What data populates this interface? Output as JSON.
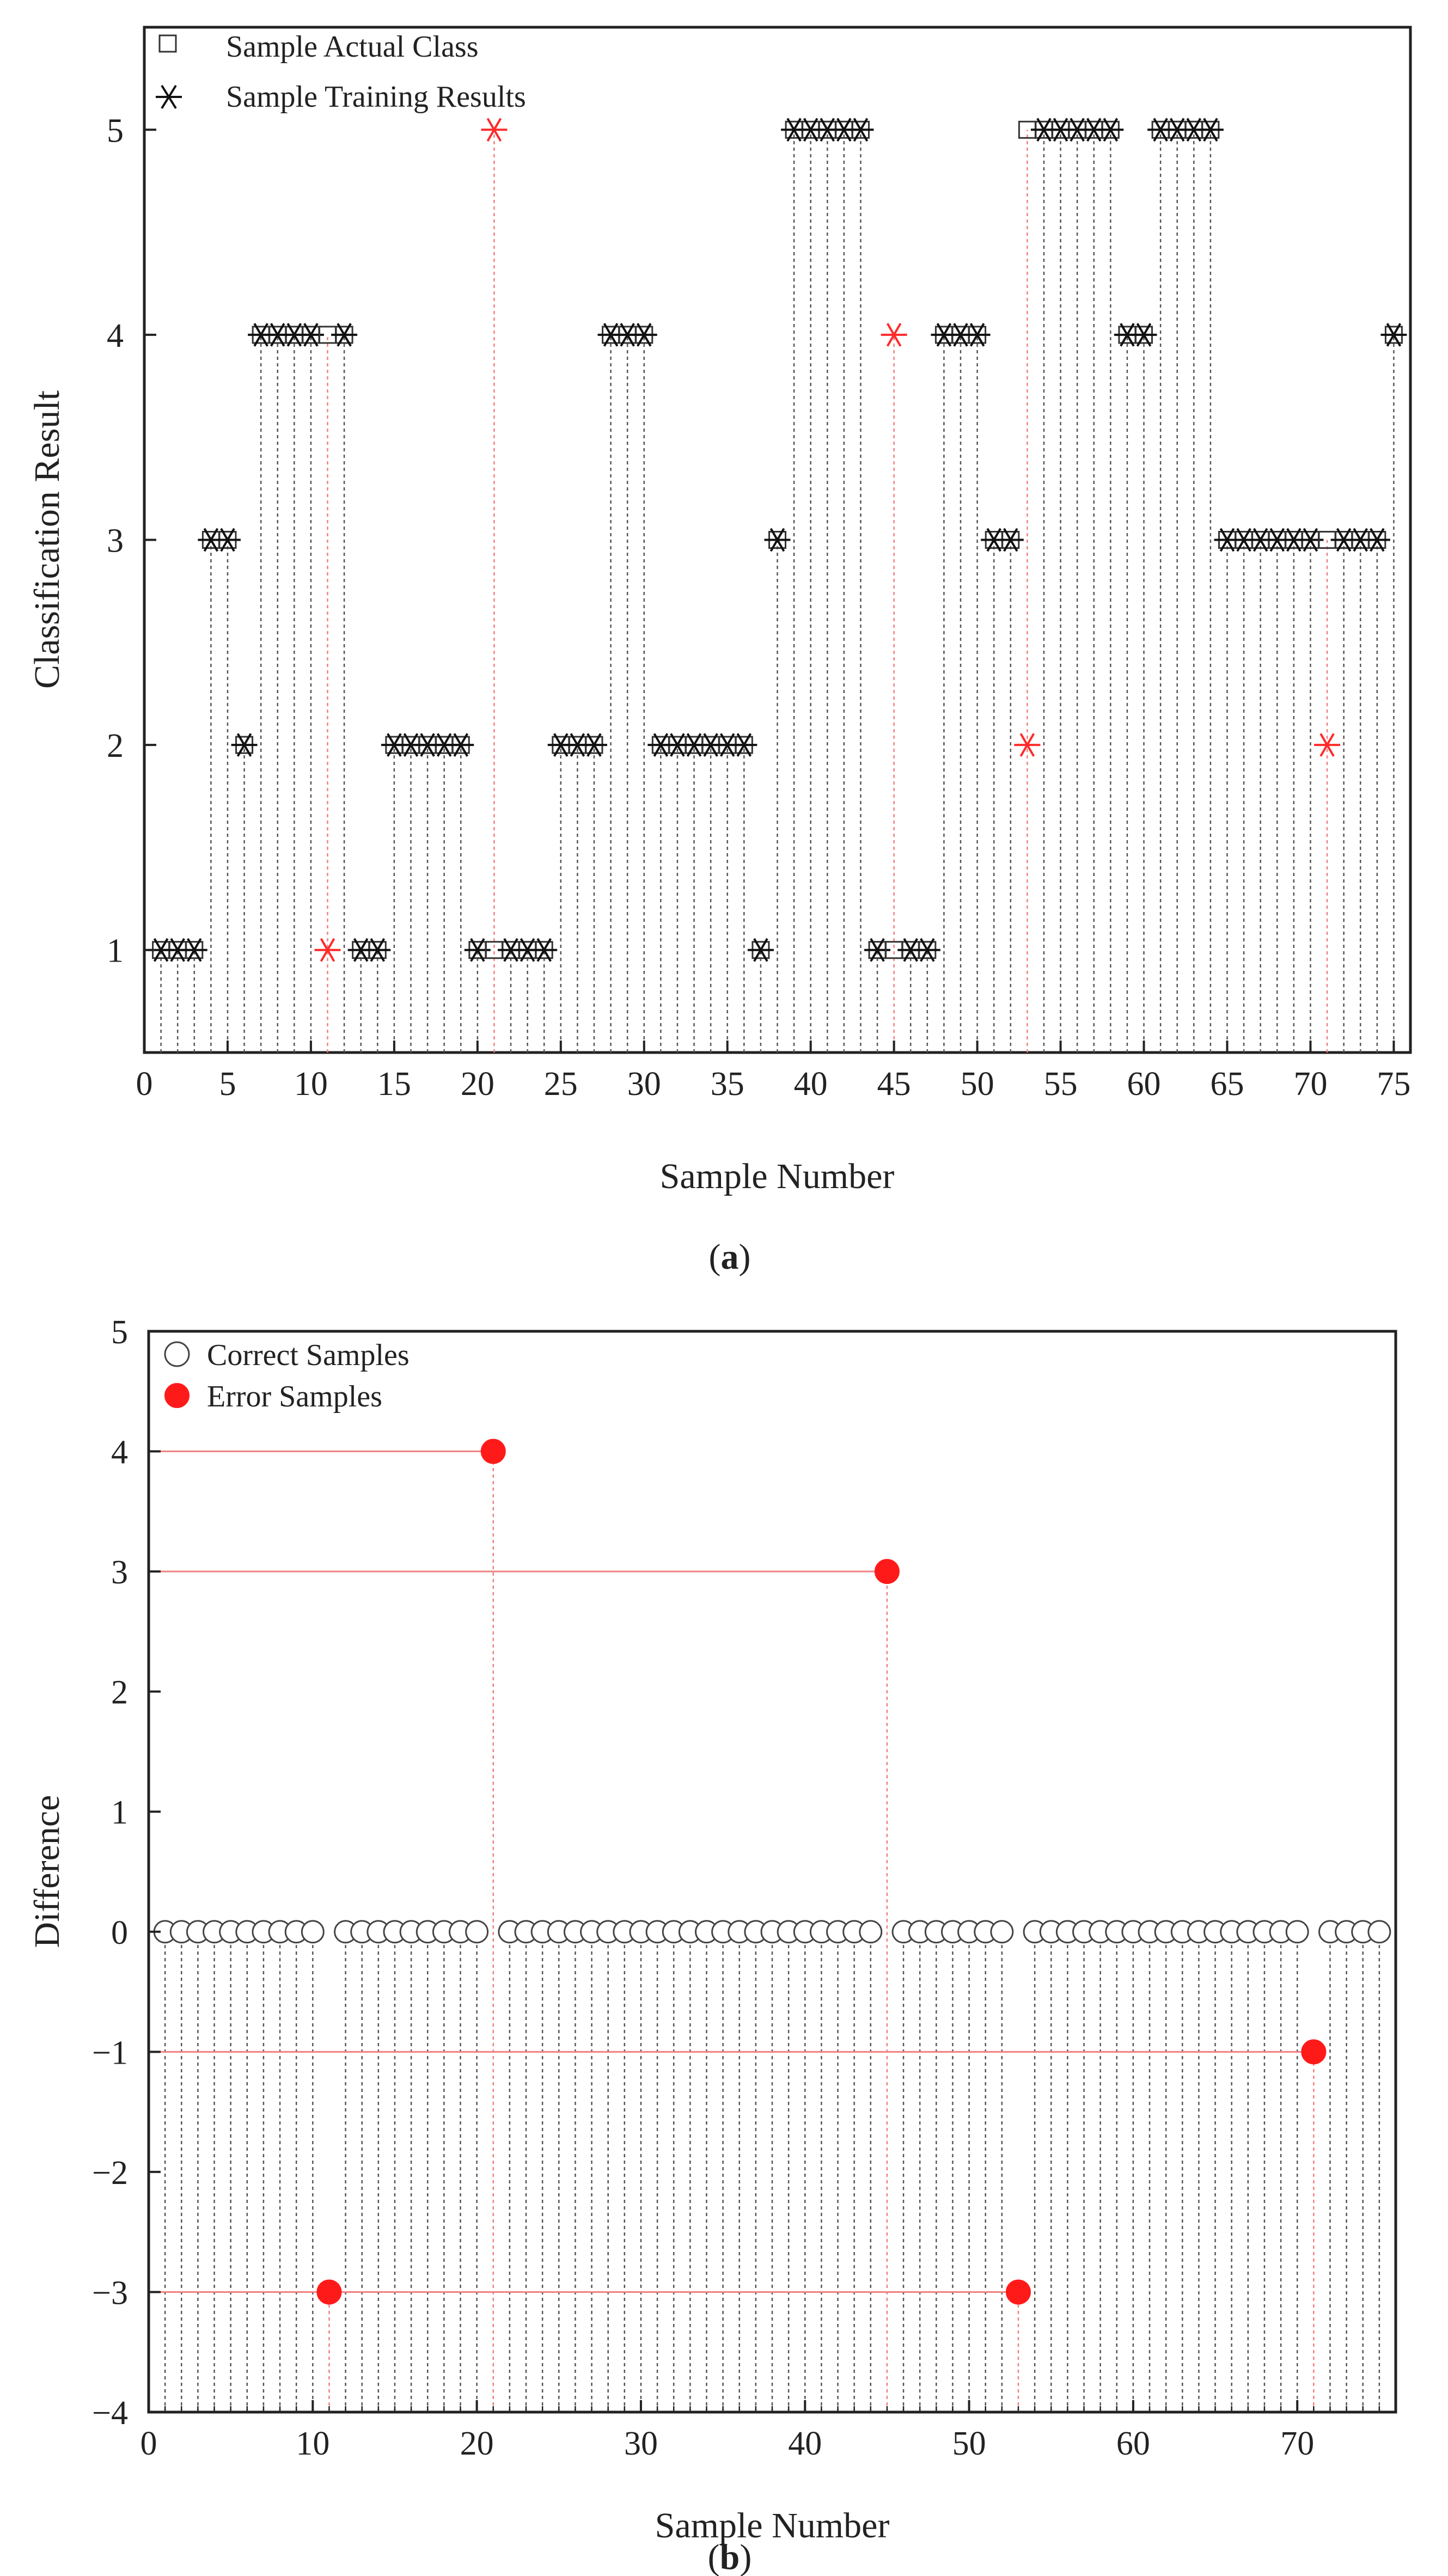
{
  "colors": {
    "axis": "#222222",
    "marker": "#111111",
    "error": "#ff2a2a",
    "drop": "#555555",
    "error_line": "#f08080"
  },
  "chart_data": [
    {
      "type": "scatter",
      "panel_label": "a",
      "xlabel": "Sample Number",
      "ylabel": "Classification Result",
      "xlim": [
        0,
        76
      ],
      "ylim": [
        0.5,
        5.5
      ],
      "xticks": [
        0,
        5,
        10,
        15,
        20,
        25,
        30,
        35,
        40,
        45,
        50,
        55,
        60,
        65,
        70,
        75
      ],
      "yticks": [
        1,
        2,
        3,
        4,
        5
      ],
      "legend": [
        "Sample Actual Class",
        "Sample Training Results"
      ],
      "legend_position": "top-left",
      "x": [
        1,
        2,
        3,
        4,
        5,
        6,
        7,
        8,
        9,
        10,
        11,
        12,
        13,
        14,
        15,
        16,
        17,
        18,
        19,
        20,
        21,
        22,
        23,
        24,
        25,
        26,
        27,
        28,
        29,
        30,
        31,
        32,
        33,
        34,
        35,
        36,
        37,
        38,
        39,
        40,
        41,
        42,
        43,
        44,
        45,
        46,
        47,
        48,
        49,
        50,
        51,
        52,
        53,
        54,
        55,
        56,
        57,
        58,
        59,
        60,
        61,
        62,
        63,
        64,
        65,
        66,
        67,
        68,
        69,
        70,
        71,
        72,
        73,
        74,
        75
      ],
      "actual_class": [
        1,
        1,
        1,
        3,
        3,
        2,
        4,
        4,
        4,
        4,
        4,
        4,
        1,
        1,
        2,
        2,
        2,
        2,
        2,
        1,
        1,
        1,
        1,
        1,
        2,
        2,
        2,
        4,
        4,
        4,
        2,
        2,
        2,
        2,
        2,
        2,
        1,
        3,
        5,
        5,
        5,
        5,
        5,
        1,
        1,
        1,
        1,
        4,
        4,
        4,
        3,
        3,
        5,
        5,
        5,
        5,
        5,
        5,
        4,
        4,
        5,
        5,
        5,
        5,
        3,
        3,
        3,
        3,
        3,
        3,
        3,
        3,
        3,
        3,
        4
      ],
      "training_result": [
        1,
        1,
        1,
        3,
        3,
        2,
        4,
        4,
        4,
        4,
        1,
        4,
        1,
        1,
        2,
        2,
        2,
        2,
        2,
        1,
        5,
        1,
        1,
        1,
        2,
        2,
        2,
        4,
        4,
        4,
        2,
        2,
        2,
        2,
        2,
        2,
        1,
        3,
        5,
        5,
        5,
        5,
        5,
        1,
        4,
        1,
        1,
        4,
        4,
        4,
        3,
        3,
        2,
        5,
        5,
        5,
        5,
        5,
        4,
        4,
        5,
        5,
        5,
        5,
        3,
        3,
        3,
        3,
        3,
        3,
        2,
        3,
        3,
        3,
        4
      ],
      "error_samples": [
        11,
        21,
        45,
        53,
        71
      ]
    },
    {
      "type": "scatter",
      "panel_label": "b",
      "xlabel": "Sample Number",
      "ylabel": "Difference",
      "xlim": [
        0,
        76
      ],
      "ylim": [
        -4,
        5
      ],
      "xticks": [
        0,
        10,
        20,
        30,
        40,
        50,
        60,
        70
      ],
      "yticks": [
        -4,
        -3,
        -2,
        -1,
        0,
        1,
        2,
        3,
        4,
        5
      ],
      "legend": [
        "Correct Samples",
        "Error Samples"
      ],
      "legend_position": "top-left",
      "correct_samples_x": [
        1,
        2,
        3,
        4,
        5,
        6,
        7,
        8,
        9,
        10,
        12,
        13,
        14,
        15,
        16,
        17,
        18,
        19,
        20,
        22,
        23,
        24,
        25,
        26,
        27,
        28,
        29,
        30,
        31,
        32,
        33,
        34,
        35,
        36,
        37,
        38,
        39,
        40,
        41,
        42,
        43,
        44,
        46,
        47,
        48,
        49,
        50,
        51,
        52,
        54,
        55,
        56,
        57,
        58,
        59,
        60,
        61,
        62,
        63,
        64,
        65,
        66,
        67,
        68,
        69,
        70,
        72,
        73,
        74,
        75
      ],
      "correct_samples_y": 0,
      "error_samples": [
        {
          "x": 11,
          "y": -3
        },
        {
          "x": 21,
          "y": 4
        },
        {
          "x": 45,
          "y": 3
        },
        {
          "x": 53,
          "y": -3
        },
        {
          "x": 71,
          "y": -1
        }
      ]
    }
  ]
}
